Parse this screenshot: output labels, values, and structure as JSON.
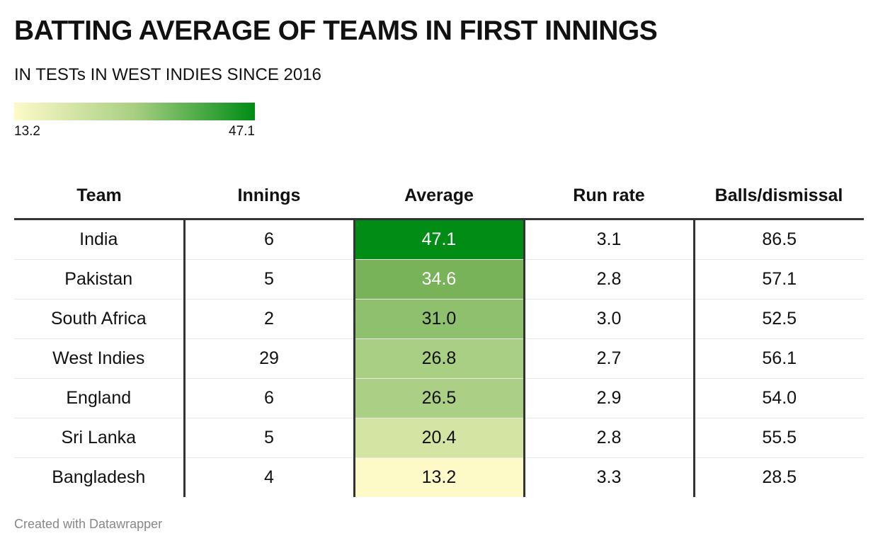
{
  "title": "BATTING AVERAGE OF TEAMS IN FIRST INNINGS",
  "subtitle": "IN TESTs IN WEST INDIES SINCE 2016",
  "legend": {
    "min": "13.2",
    "max": "47.1",
    "colors": [
      "#fefac8",
      "#a8cf82",
      "#008c15"
    ]
  },
  "footer": "Created with Datawrapper",
  "chart_data": {
    "type": "table",
    "title": "BATTING AVERAGE OF TEAMS IN FIRST INNINGS",
    "columns": [
      "Team",
      "Innings",
      "Average",
      "Run rate",
      "Balls/dismissal"
    ],
    "rows": [
      {
        "team": "India",
        "innings": "6",
        "average": "47.1",
        "run_rate": "3.1",
        "balls": "86.5",
        "color": "#008c15",
        "text_color": "#ffffff"
      },
      {
        "team": "Pakistan",
        "innings": "5",
        "average": "34.6",
        "run_rate": "2.8",
        "balls": "57.1",
        "color": "#78b35a",
        "text_color": "#ffffff"
      },
      {
        "team": "South Africa",
        "innings": "2",
        "average": "31.0",
        "run_rate": "3.0",
        "balls": "52.5",
        "color": "#8ec06e",
        "text_color": "#111111"
      },
      {
        "team": "West Indies",
        "innings": "29",
        "average": "26.8",
        "run_rate": "2.7",
        "balls": "56.1",
        "color": "#a8cf82",
        "text_color": "#111111"
      },
      {
        "team": "England",
        "innings": "6",
        "average": "26.5",
        "run_rate": "2.9",
        "balls": "54.0",
        "color": "#abd085",
        "text_color": "#111111"
      },
      {
        "team": "Sri Lanka",
        "innings": "5",
        "average": "20.4",
        "run_rate": "2.8",
        "balls": "55.5",
        "color": "#d3e4a3",
        "text_color": "#111111"
      },
      {
        "team": "Bangladesh",
        "innings": "4",
        "average": "13.2",
        "run_rate": "3.3",
        "balls": "28.5",
        "color": "#fefac8",
        "text_color": "#111111"
      }
    ]
  }
}
